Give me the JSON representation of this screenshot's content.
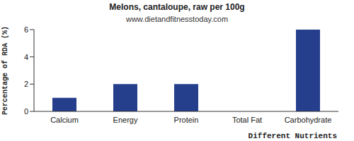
{
  "chart_data": {
    "type": "bar",
    "title": "Melons, cantaloupe, raw per 100g",
    "subtitle": "www.dietandfitnesstoday.com",
    "x_label": "Different Nutrients",
    "y_label": "Percentage of RDA (%)",
    "categories": [
      "Calcium",
      "Energy",
      "Protein",
      "Total Fat",
      "Carbohydrate"
    ],
    "values": [
      1,
      2,
      2,
      0,
      6
    ],
    "color": "#263f8c",
    "ylim": [
      0,
      6
    ],
    "yticks": [
      0,
      2,
      4,
      6
    ],
    "grid": false
  }
}
